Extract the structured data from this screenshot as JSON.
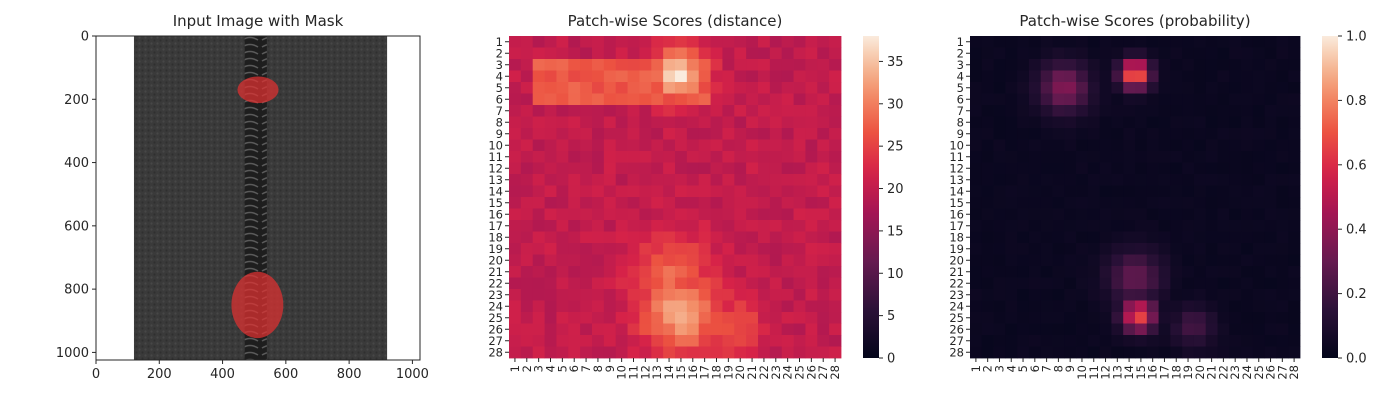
{
  "figure": {
    "background": "#ffffff",
    "text_color": "#262626"
  },
  "chart_data": [
    {
      "type": "image",
      "title": "Input Image with Mask",
      "xlabel": "",
      "ylabel": "",
      "xticks": [
        "0",
        "200",
        "400",
        "600",
        "800",
        "1000"
      ],
      "yticks": [
        "0",
        "200",
        "400",
        "600",
        "800",
        "1000"
      ],
      "xlim": [
        0,
        1024
      ],
      "ylim": [
        1024,
        0
      ],
      "image_size": [
        1024,
        1024
      ],
      "content": {
        "fabric_x_range": [
          120,
          920
        ],
        "zipper_x_range": [
          470,
          540
        ],
        "mask_regions": [
          {
            "cx": 512,
            "cy": 170,
            "rx": 65,
            "ry": 42
          },
          {
            "cx": 510,
            "cy": 850,
            "rx": 82,
            "ry": 105
          }
        ]
      },
      "colors": {
        "fabric": "#3b3b3b",
        "zipper": "#222222",
        "mask": "#e03030"
      }
    },
    {
      "type": "heatmap",
      "title": "Patch-wise Scores (distance)",
      "xlabel": "",
      "ylabel": "",
      "rows": 28,
      "cols": 28,
      "xticks": [
        "1",
        "2",
        "3",
        "4",
        "5",
        "6",
        "7",
        "8",
        "9",
        "10",
        "11",
        "12",
        "13",
        "14",
        "15",
        "16",
        "17",
        "18",
        "19",
        "20",
        "21",
        "22",
        "23",
        "24",
        "25",
        "26",
        "27",
        "28"
      ],
      "yticks": [
        "1",
        "2",
        "3",
        "4",
        "5",
        "6",
        "7",
        "8",
        "9",
        "10",
        "11",
        "12",
        "13",
        "14",
        "15",
        "16",
        "17",
        "18",
        "19",
        "20",
        "21",
        "22",
        "23",
        "24",
        "25",
        "26",
        "27",
        "28"
      ],
      "colorbar": {
        "min": 0,
        "max": 38,
        "ticks": [
          "0",
          "5",
          "10",
          "15",
          "20",
          "25",
          "30",
          "35"
        ],
        "tick_values": [
          0,
          5,
          10,
          15,
          20,
          25,
          30,
          35
        ]
      },
      "colormap": "rocket",
      "field": {
        "base": 20,
        "left_column_values": [
          13,
          14,
          14
        ],
        "top_band": {
          "rows": [
            3,
            6
          ],
          "cols": [
            3,
            17
          ],
          "value": 27
        },
        "hotspots": [
          {
            "row": 3.8,
            "col": 14.8,
            "peak": 37,
            "spread": 1.6
          },
          {
            "row": 24.6,
            "col": 15.0,
            "peak": 33,
            "spread": 2.4
          },
          {
            "row": 21.5,
            "col": 14.2,
            "peak": 28,
            "spread": 2.5
          },
          {
            "row": 25.8,
            "col": 19.5,
            "peak": 27,
            "spread": 1.6
          }
        ]
      }
    },
    {
      "type": "heatmap",
      "title": "Patch-wise Scores (probability)",
      "xlabel": "",
      "ylabel": "",
      "rows": 28,
      "cols": 28,
      "xticks": [
        "1",
        "2",
        "3",
        "4",
        "5",
        "6",
        "7",
        "8",
        "9",
        "10",
        "11",
        "12",
        "13",
        "14",
        "15",
        "16",
        "17",
        "18",
        "19",
        "20",
        "21",
        "22",
        "23",
        "24",
        "25",
        "26",
        "27",
        "28"
      ],
      "yticks": [
        "1",
        "2",
        "3",
        "4",
        "5",
        "6",
        "7",
        "8",
        "9",
        "10",
        "11",
        "12",
        "13",
        "14",
        "15",
        "16",
        "17",
        "18",
        "19",
        "20",
        "21",
        "22",
        "23",
        "24",
        "25",
        "26",
        "27",
        "28"
      ],
      "colorbar": {
        "min": 0,
        "max": 1,
        "ticks": [
          "0.0",
          "0.2",
          "0.4",
          "0.6",
          "0.8",
          "1.0"
        ],
        "tick_values": [
          0,
          0.2,
          0.4,
          0.6,
          0.8,
          1.0
        ]
      },
      "colormap": "rocket",
      "field": {
        "base": 0.03,
        "hotspots": [
          {
            "row": 3.8,
            "col": 14.5,
            "peak": 0.78,
            "spread": 0.9
          },
          {
            "row": 5.0,
            "col": 8.5,
            "peak": 0.38,
            "spread": 1.5
          },
          {
            "row": 24.8,
            "col": 14.8,
            "peak": 0.68,
            "spread": 1.0
          },
          {
            "row": 21.5,
            "col": 14.5,
            "peak": 0.3,
            "spread": 1.6
          },
          {
            "row": 25.8,
            "col": 19.5,
            "peak": 0.22,
            "spread": 1.2
          }
        ]
      }
    }
  ]
}
